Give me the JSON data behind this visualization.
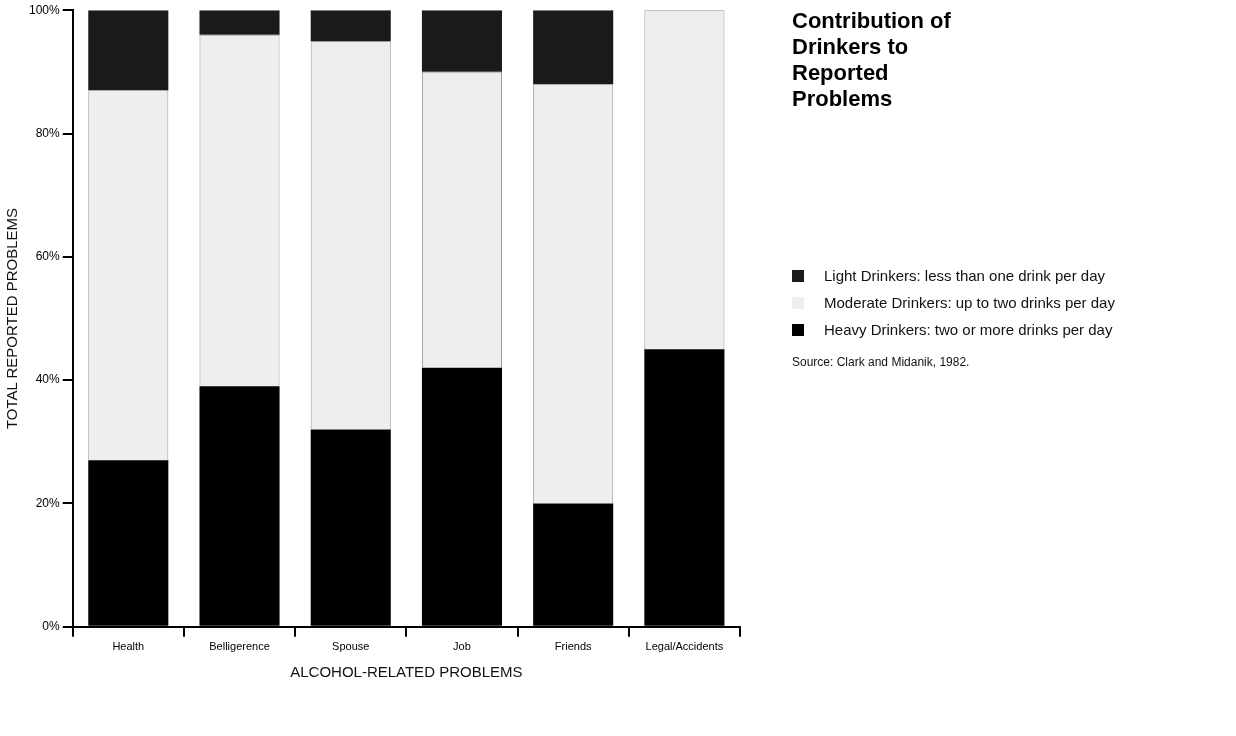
{
  "chart_data": {
    "type": "bar",
    "title": "Contribution of Drinkers to Reported Problems",
    "xlabel": "ALCOHOL-RELATED PROBLEMS",
    "ylabel": "TOTAL REPORTED PROBLEMS",
    "categories": [
      "Health",
      "Belligerence",
      "Spouse",
      "Job",
      "Friends",
      "Legal/Accidents"
    ],
    "stacked": true,
    "series": [
      {
        "name": "Heavy Drinkers: two or more drinks per day",
        "color": "#000000",
        "values": [
          27,
          39,
          32,
          42,
          20,
          45
        ]
      },
      {
        "name": "Moderate Drinkers: up to two drinks per day",
        "color": "#eeeeee",
        "values": [
          60,
          57,
          63,
          48,
          68,
          55
        ]
      },
      {
        "name": "Light Drinkers: less than one drink per day",
        "color": "#1a1a1a",
        "values": [
          13,
          4,
          5,
          10,
          12,
          0
        ]
      }
    ],
    "ylim": [
      0,
      100
    ],
    "yticks": [
      {
        "value": 0,
        "label": "0%"
      },
      {
        "value": 20,
        "label": "20%"
      },
      {
        "value": 40,
        "label": "40%"
      },
      {
        "value": 60,
        "label": "60%"
      },
      {
        "value": 80,
        "label": "80%"
      },
      {
        "value": 100,
        "label": "100%"
      }
    ],
    "grid": false,
    "legend": "right",
    "annotations": [
      "Source: Clark and Midanik, 1982."
    ]
  }
}
